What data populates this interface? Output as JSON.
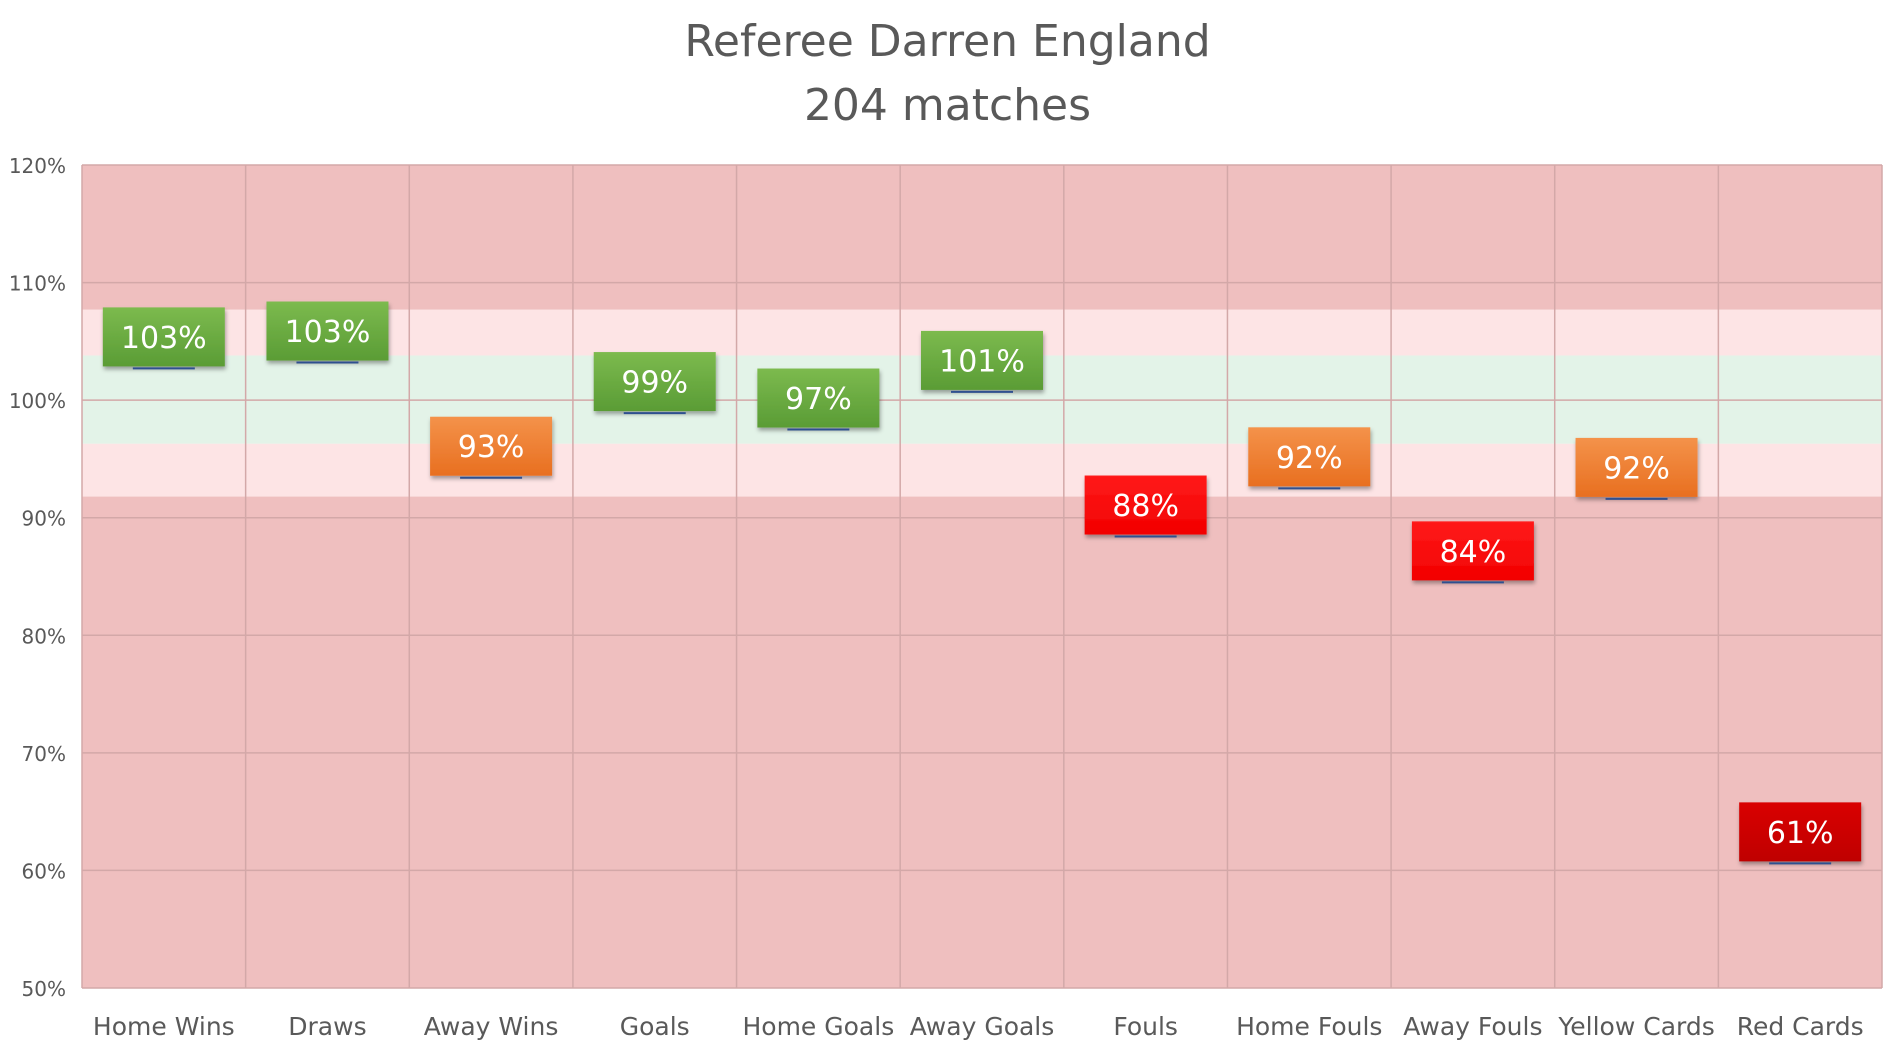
{
  "chart_data": {
    "type": "bar",
    "title": "Referee Darren England",
    "subtitle": "204 matches",
    "xlabel": "",
    "ylabel": "",
    "ylim": [
      50,
      120
    ],
    "yticks": [
      50,
      60,
      70,
      80,
      90,
      100,
      110,
      120
    ],
    "ytick_labels": [
      "50%",
      "60%",
      "70%",
      "80%",
      "90%",
      "100%",
      "110%",
      "120%"
    ],
    "grid": true,
    "legend": "none",
    "bands": [
      {
        "from": 50,
        "to": 91.8,
        "color": "#efbfbf"
      },
      {
        "from": 91.8,
        "to": 96.3,
        "color": "#fde4e5"
      },
      {
        "from": 96.3,
        "to": 103.8,
        "color": "#e3f3e8"
      },
      {
        "from": 103.8,
        "to": 107.7,
        "color": "#fde4e5"
      },
      {
        "from": 107.7,
        "to": 120,
        "color": "#efbfbf"
      }
    ],
    "categories": [
      "Home Wins",
      "Draws",
      "Away Wins",
      "Goals",
      "Home Goals",
      "Away Goals",
      "Fouls",
      "Home Fouls",
      "Away Fouls",
      "Yellow Cards",
      "Red Cards"
    ],
    "values": [
      103,
      103,
      93,
      99,
      97,
      101,
      88,
      92,
      84,
      92,
      61
    ],
    "marker_values": [
      102.7,
      103.2,
      93.4,
      98.9,
      97.5,
      100.7,
      88.4,
      92.5,
      84.5,
      91.6,
      60.6
    ],
    "labels": [
      "103%",
      "103%",
      "93%",
      "99%",
      "97%",
      "101%",
      "88%",
      "92%",
      "84%",
      "92%",
      "61%"
    ],
    "status": [
      "good",
      "good",
      "warn",
      "good",
      "good",
      "good",
      "bad",
      "warn",
      "bad",
      "warn",
      "severe"
    ],
    "colors": {
      "good": "#64a33e",
      "warn": "#ee7b2f",
      "bad": "#ff0000",
      "severe": "#cc0000",
      "marker": "#2f4f8f",
      "gridline": "#d3a8a8",
      "tick_text": "#595959",
      "title_text": "#595959"
    }
  }
}
